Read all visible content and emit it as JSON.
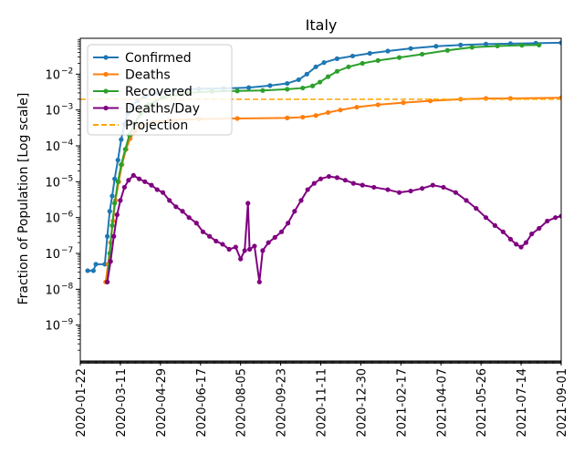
{
  "chart_data": {
    "type": "line",
    "title": "Italy",
    "xlabel": "",
    "ylabel": "Fraction of Population [Log scale]",
    "yscale": "log",
    "ylim": [
      1e-10,
      0.1
    ],
    "xlim": [
      "2020-01-22",
      "2021-09-01"
    ],
    "grid": false,
    "legend_position": "top-left",
    "x_ticks": [
      "2020-01-22",
      "2020-03-11",
      "2020-04-29",
      "2020-06-17",
      "2020-08-05",
      "2020-09-23",
      "2020-11-11",
      "2020-12-30",
      "2021-02-17",
      "2021-04-07",
      "2021-05-26",
      "2021-07-14",
      "2021-09-01"
    ],
    "y_ticks": [
      {
        "value": 1e-09,
        "base": "10",
        "exp": "−9"
      },
      {
        "value": 1e-08,
        "base": "10",
        "exp": "−8"
      },
      {
        "value": 1e-07,
        "base": "10",
        "exp": "−7"
      },
      {
        "value": 1e-06,
        "base": "10",
        "exp": "−6"
      },
      {
        "value": 1e-05,
        "base": "10",
        "exp": "−5"
      },
      {
        "value": 0.0001,
        "base": "10",
        "exp": "−4"
      },
      {
        "value": 0.001,
        "base": "10",
        "exp": "−3"
      },
      {
        "value": 0.01,
        "base": "10",
        "exp": "−2"
      }
    ],
    "series": [
      {
        "name": "Confirmed",
        "color": "#1f77b4",
        "marker": true,
        "points": [
          [
            "2020-01-31",
            3.3e-08
          ],
          [
            "2020-02-07",
            3.3e-08
          ],
          [
            "2020-02-10",
            5e-08
          ],
          [
            "2020-02-21",
            5e-08
          ],
          [
            "2020-02-24",
            3e-07
          ],
          [
            "2020-02-27",
            1.5e-06
          ],
          [
            "2020-03-01",
            4e-06
          ],
          [
            "2020-03-04",
            1.2e-05
          ],
          [
            "2020-03-08",
            4e-05
          ],
          [
            "2020-03-12",
            0.00015
          ],
          [
            "2020-03-16",
            0.0004
          ],
          [
            "2020-03-20",
            0.0008
          ],
          [
            "2020-03-25",
            0.0013
          ],
          [
            "2020-04-01",
            0.0018
          ],
          [
            "2020-04-10",
            0.0024
          ],
          [
            "2020-04-25",
            0.003
          ],
          [
            "2020-05-15",
            0.0036
          ],
          [
            "2020-06-15",
            0.0039
          ],
          [
            "2020-07-15",
            0.004
          ],
          [
            "2020-08-15",
            0.0042
          ],
          [
            "2020-09-10",
            0.0048
          ],
          [
            "2020-10-01",
            0.0055
          ],
          [
            "2020-10-15",
            0.007
          ],
          [
            "2020-10-25",
            0.01
          ],
          [
            "2020-11-05",
            0.016
          ],
          [
            "2020-11-15",
            0.021
          ],
          [
            "2020-12-01",
            0.027
          ],
          [
            "2020-12-20",
            0.032
          ],
          [
            "2021-01-10",
            0.038
          ],
          [
            "2021-02-01",
            0.044
          ],
          [
            "2021-03-01",
            0.052
          ],
          [
            "2021-04-01",
            0.06
          ],
          [
            "2021-05-01",
            0.065
          ],
          [
            "2021-06-01",
            0.069
          ],
          [
            "2021-07-01",
            0.071
          ],
          [
            "2021-08-01",
            0.073
          ],
          [
            "2021-09-01",
            0.075
          ]
        ]
      },
      {
        "name": "Deaths",
        "color": "#ff7f0e",
        "marker": true,
        "points": [
          [
            "2020-02-22",
            1.6e-08
          ],
          [
            "2020-02-25",
            5e-08
          ],
          [
            "2020-02-28",
            2e-07
          ],
          [
            "2020-03-02",
            8e-07
          ],
          [
            "2020-03-05",
            3e-06
          ],
          [
            "2020-03-09",
            1e-05
          ],
          [
            "2020-03-13",
            3e-05
          ],
          [
            "2020-03-18",
            8e-05
          ],
          [
            "2020-03-23",
            0.00016
          ],
          [
            "2020-03-29",
            0.00026
          ],
          [
            "2020-04-06",
            0.00037
          ],
          [
            "2020-04-20",
            0.00046
          ],
          [
            "2020-05-10",
            0.00052
          ],
          [
            "2020-06-15",
            0.00056
          ],
          [
            "2020-08-01",
            0.00058
          ],
          [
            "2020-10-01",
            0.0006
          ],
          [
            "2020-10-20",
            0.00063
          ],
          [
            "2020-11-05",
            0.0007
          ],
          [
            "2020-11-20",
            0.00085
          ],
          [
            "2020-12-05",
            0.001
          ],
          [
            "2020-12-25",
            0.0012
          ],
          [
            "2021-01-20",
            0.0014
          ],
          [
            "2021-02-20",
            0.0016
          ],
          [
            "2021-03-25",
            0.0018
          ],
          [
            "2021-05-01",
            0.002
          ],
          [
            "2021-06-01",
            0.0021
          ],
          [
            "2021-07-01",
            0.0021
          ],
          [
            "2021-09-01",
            0.0022
          ]
        ]
      },
      {
        "name": "Recovered",
        "color": "#2ca02c",
        "marker": true,
        "points": [
          [
            "2020-02-24",
            1.6e-08
          ],
          [
            "2020-02-27",
            1e-07
          ],
          [
            "2020-03-01",
            6e-07
          ],
          [
            "2020-03-04",
            2.5e-06
          ],
          [
            "2020-03-08",
            1e-05
          ],
          [
            "2020-03-12",
            3e-05
          ],
          [
            "2020-03-17",
            8e-05
          ],
          [
            "2020-03-22",
            0.0002
          ],
          [
            "2020-03-28",
            0.0004
          ],
          [
            "2020-04-05",
            0.0008
          ],
          [
            "2020-04-15",
            0.0014
          ],
          [
            "2020-05-01",
            0.0022
          ],
          [
            "2020-06-01",
            0.003
          ],
          [
            "2020-07-01",
            0.0033
          ],
          [
            "2020-08-01",
            0.0034
          ],
          [
            "2020-09-01",
            0.0035
          ],
          [
            "2020-10-01",
            0.0038
          ],
          [
            "2020-10-20",
            0.0041
          ],
          [
            "2020-11-01",
            0.0047
          ],
          [
            "2020-11-10",
            0.006
          ],
          [
            "2020-11-20",
            0.0085
          ],
          [
            "2020-12-01",
            0.012
          ],
          [
            "2020-12-15",
            0.016
          ],
          [
            "2021-01-01",
            0.02
          ],
          [
            "2021-01-20",
            0.024
          ],
          [
            "2021-02-15",
            0.029
          ],
          [
            "2021-03-15",
            0.036
          ],
          [
            "2021-04-15",
            0.046
          ],
          [
            "2021-05-15",
            0.056
          ],
          [
            "2021-06-15",
            0.061
          ],
          [
            "2021-07-15",
            0.064
          ],
          [
            "2021-08-05",
            0.065
          ]
        ]
      },
      {
        "name": "Deaths/Day",
        "color": "#800080",
        "marker": true,
        "points": [
          [
            "2020-02-24",
            1.6e-08
          ],
          [
            "2020-02-28",
            6e-08
          ],
          [
            "2020-03-03",
            3e-07
          ],
          [
            "2020-03-07",
            1.2e-06
          ],
          [
            "2020-03-11",
            3e-06
          ],
          [
            "2020-03-16",
            7e-06
          ],
          [
            "2020-03-21",
            1.1e-05
          ],
          [
            "2020-03-27",
            1.5e-05
          ],
          [
            "2020-04-03",
            1.2e-05
          ],
          [
            "2020-04-10",
            1e-05
          ],
          [
            "2020-04-18",
            8e-06
          ],
          [
            "2020-04-25",
            6e-06
          ],
          [
            "2020-05-02",
            5e-06
          ],
          [
            "2020-05-10",
            3e-06
          ],
          [
            "2020-05-18",
            2e-06
          ],
          [
            "2020-05-26",
            1.5e-06
          ],
          [
            "2020-06-03",
            1e-06
          ],
          [
            "2020-06-12",
            7e-07
          ],
          [
            "2020-06-20",
            4e-07
          ],
          [
            "2020-06-28",
            3e-07
          ],
          [
            "2020-07-06",
            2.2e-07
          ],
          [
            "2020-07-14",
            1.8e-07
          ],
          [
            "2020-07-22",
            1.3e-07
          ],
          [
            "2020-07-30",
            1.5e-07
          ],
          [
            "2020-08-05",
            7e-08
          ],
          [
            "2020-08-10",
            1.2e-07
          ],
          [
            "2020-08-14",
            2.5e-06
          ],
          [
            "2020-08-16",
            1.3e-07
          ],
          [
            "2020-08-22",
            1.6e-07
          ],
          [
            "2020-08-28",
            1.6e-08
          ],
          [
            "2020-09-01",
            1.2e-07
          ],
          [
            "2020-09-08",
            2e-07
          ],
          [
            "2020-09-16",
            2.8e-07
          ],
          [
            "2020-09-24",
            4e-07
          ],
          [
            "2020-10-02",
            7e-07
          ],
          [
            "2020-10-10",
            1.5e-06
          ],
          [
            "2020-10-18",
            3e-06
          ],
          [
            "2020-10-26",
            6e-06
          ],
          [
            "2020-11-03",
            9e-06
          ],
          [
            "2020-11-11",
            1.2e-05
          ],
          [
            "2020-11-21",
            1.4e-05
          ],
          [
            "2020-12-01",
            1.3e-05
          ],
          [
            "2020-12-11",
            1.1e-05
          ],
          [
            "2020-12-21",
            9e-06
          ],
          [
            "2021-01-01",
            8e-06
          ],
          [
            "2021-01-15",
            7e-06
          ],
          [
            "2021-02-01",
            6e-06
          ],
          [
            "2021-02-15",
            5e-06
          ],
          [
            "2021-03-01",
            5.5e-06
          ],
          [
            "2021-03-15",
            6.5e-06
          ],
          [
            "2021-03-28",
            8e-06
          ],
          [
            "2021-04-10",
            7e-06
          ],
          [
            "2021-04-25",
            5e-06
          ],
          [
            "2021-05-08",
            3e-06
          ],
          [
            "2021-05-20",
            1.8e-06
          ],
          [
            "2021-06-01",
            1e-06
          ],
          [
            "2021-06-12",
            6e-07
          ],
          [
            "2021-06-22",
            4e-07
          ],
          [
            "2021-07-01",
            2.5e-07
          ],
          [
            "2021-07-08",
            1.8e-07
          ],
          [
            "2021-07-14",
            1.5e-07
          ],
          [
            "2021-07-20",
            2e-07
          ],
          [
            "2021-07-27",
            3.5e-07
          ],
          [
            "2021-08-05",
            5e-07
          ],
          [
            "2021-08-15",
            8e-07
          ],
          [
            "2021-08-25",
            1e-06
          ],
          [
            "2021-09-01",
            1.1e-06
          ]
        ]
      },
      {
        "name": "Projection",
        "color": "#ffa500",
        "marker": false,
        "dashed": true,
        "points": [
          [
            "2020-01-22",
            0.002
          ],
          [
            "2021-09-01",
            0.002
          ]
        ]
      }
    ]
  }
}
